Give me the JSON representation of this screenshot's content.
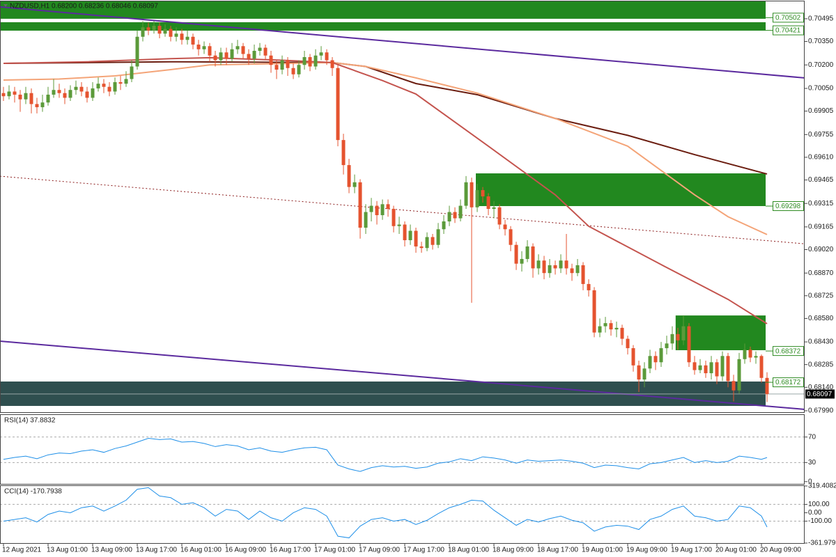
{
  "chart_data": [
    {
      "type": "candlestick",
      "title": "NZDUSD,H1  0.68200 0.68236 0.68046 0.68097",
      "categories": [
        "12 Aug 2021",
        null,
        null,
        null,
        null,
        null,
        null,
        null,
        "13 Aug 01:00",
        null,
        null,
        null,
        null,
        null,
        null,
        null,
        "13 Aug 09:00",
        null,
        null,
        null,
        null,
        null,
        null,
        null,
        "13 Aug 17:00",
        null,
        null,
        null,
        null,
        null,
        null,
        null,
        "16 Aug 01:00",
        null,
        null,
        null,
        null,
        null,
        null,
        null,
        "16 Aug 09:00",
        null,
        null,
        null,
        null,
        null,
        null,
        null,
        "16 Aug 17:00",
        null,
        null,
        null,
        null,
        null,
        null,
        null,
        "17 Aug 01:00",
        null,
        null,
        null,
        null,
        null,
        null,
        null,
        "17 Aug 09:00",
        null,
        null,
        null,
        null,
        null,
        null,
        null,
        "17 Aug 17:00",
        null,
        null,
        null,
        null,
        null,
        null,
        null,
        "18 Aug 01:00",
        null,
        null,
        null,
        null,
        null,
        null,
        null,
        "18 Aug 09:00",
        null,
        null,
        null,
        null,
        null,
        null,
        null,
        "18 Aug 17:00",
        null,
        null,
        null,
        null,
        null,
        null,
        null,
        "19 Aug 01:00",
        null,
        null,
        null,
        null,
        null,
        null,
        null,
        "19 Aug 09:00",
        null,
        null,
        null,
        null,
        null,
        null,
        null,
        "19 Aug 17:00",
        null,
        null,
        null,
        null,
        null,
        null,
        null,
        "20 Aug 01:00",
        null,
        null,
        null,
        null,
        null,
        null,
        null,
        "20 Aug 09:00",
        null
      ],
      "open": [
        0.7002,
        0.7,
        0.7003,
        0.7001,
        0.6998,
        0.7002,
        0.6995,
        0.6993,
        0.6996,
        0.7001,
        0.7004,
        0.7002,
        0.6999,
        0.7004,
        0.7006,
        0.7003,
        0.6999,
        0.7005,
        0.7008,
        0.7006,
        0.7003,
        0.7009,
        0.7008,
        0.7011,
        0.7019,
        0.7038,
        0.7044,
        0.7042,
        0.7045,
        0.704,
        0.7043,
        0.7038,
        0.704,
        0.7036,
        0.7038,
        0.7033,
        0.703,
        0.7032,
        0.7026,
        0.7023,
        0.7028,
        0.7024,
        0.703,
        0.7032,
        0.7027,
        0.7024,
        0.7029,
        0.7031,
        0.7026,
        0.702,
        0.7017,
        0.7023,
        0.7018,
        0.7014,
        0.702,
        0.7025,
        0.7019,
        0.7026,
        0.7028,
        0.7023,
        0.7018,
        0.6972,
        0.6956,
        0.6942,
        0.6945,
        0.6916,
        0.6926,
        0.693,
        0.6924,
        0.6931,
        0.6928,
        0.6917,
        0.6918,
        0.6908,
        0.6914,
        0.6904,
        0.6903,
        0.691,
        0.6905,
        0.6915,
        0.692,
        0.6926,
        0.6922,
        0.693,
        0.6945,
        0.6929,
        0.694,
        0.6936,
        0.6928,
        0.6929,
        0.6918,
        0.6915,
        0.6905,
        0.6893,
        0.6896,
        0.6904,
        0.689,
        0.6895,
        0.6887,
        0.6892,
        0.689,
        0.6895,
        0.689,
        0.6887,
        0.6892,
        0.688,
        0.6876,
        0.6849,
        0.6853,
        0.6855,
        0.6851,
        0.6852,
        0.6845,
        0.6839,
        0.6828,
        0.6819,
        0.6826,
        0.6834,
        0.683,
        0.6839,
        0.6842,
        0.6848,
        0.6844,
        0.6853,
        0.683,
        0.6825,
        0.6828,
        0.6823,
        0.683,
        0.6821,
        0.6834,
        0.6818,
        0.6812,
        0.6832,
        0.6838,
        0.6833,
        0.6834,
        0.682
      ],
      "high": [
        0.7006,
        0.7007,
        0.7006,
        0.7004,
        0.7006,
        0.7005,
        0.6999,
        0.7001,
        0.7006,
        0.7011,
        0.7008,
        0.7005,
        0.7007,
        0.701,
        0.7009,
        0.7006,
        0.7009,
        0.7012,
        0.7011,
        0.7009,
        0.7012,
        0.7013,
        0.7016,
        0.7023,
        0.7042,
        0.7048,
        0.7047,
        0.7048,
        0.7047,
        0.7046,
        0.7045,
        0.7044,
        0.7043,
        0.7042,
        0.704,
        0.7036,
        0.7035,
        0.7034,
        0.7029,
        0.7031,
        0.7031,
        0.7034,
        0.7036,
        0.7034,
        0.703,
        0.7033,
        0.7034,
        0.7033,
        0.7029,
        0.7023,
        0.7026,
        0.7025,
        0.7021,
        0.7023,
        0.7029,
        0.7027,
        0.703,
        0.7032,
        0.703,
        0.7025,
        0.702,
        0.6976,
        0.696,
        0.695,
        0.6947,
        0.6931,
        0.6935,
        0.6933,
        0.6934,
        0.6934,
        0.693,
        0.6923,
        0.692,
        0.6918,
        0.6916,
        0.6907,
        0.6913,
        0.6912,
        0.6919,
        0.6924,
        0.693,
        0.6929,
        0.6934,
        0.6949,
        0.6948,
        0.6944,
        0.6942,
        0.6938,
        0.6933,
        0.6931,
        0.6921,
        0.6917,
        0.6907,
        0.6901,
        0.6908,
        0.6906,
        0.6899,
        0.6898,
        0.6896,
        0.6895,
        0.6899,
        0.6912,
        0.6893,
        0.6896,
        0.6894,
        0.6883,
        0.6878,
        0.6858,
        0.6859,
        0.6857,
        0.6856,
        0.6854,
        0.6847,
        0.6841,
        0.6831,
        0.683,
        0.6838,
        0.6837,
        0.6843,
        0.6847,
        0.6853,
        0.6852,
        0.686,
        0.6855,
        0.6834,
        0.6832,
        0.6831,
        0.6834,
        0.6832,
        0.6837,
        0.6836,
        0.6822,
        0.6836,
        0.6842,
        0.684,
        0.6837,
        0.6835,
        0.68236
      ],
      "low": [
        0.6997,
        0.6998,
        0.6996,
        0.699,
        0.6995,
        0.6989,
        0.6989,
        0.699,
        0.6994,
        0.6999,
        0.6999,
        0.6995,
        0.6997,
        0.7001,
        0.7,
        0.6996,
        0.6997,
        0.7003,
        0.7002,
        0.7,
        0.7001,
        0.7004,
        0.7006,
        0.7009,
        0.7017,
        0.7035,
        0.7039,
        0.704,
        0.7037,
        0.7038,
        0.7035,
        0.7035,
        0.7033,
        0.7033,
        0.703,
        0.7026,
        0.7027,
        0.7022,
        0.7019,
        0.702,
        0.702,
        0.7022,
        0.7027,
        0.7024,
        0.702,
        0.7021,
        0.7026,
        0.7023,
        0.7015,
        0.7011,
        0.7014,
        0.7013,
        0.7011,
        0.7012,
        0.7017,
        0.7016,
        0.7017,
        0.7023,
        0.702,
        0.7013,
        0.6968,
        0.695,
        0.6938,
        0.6938,
        0.6909,
        0.6912,
        0.692,
        0.6918,
        0.6921,
        0.6923,
        0.6913,
        0.6912,
        0.6904,
        0.6905,
        0.69,
        0.69,
        0.6901,
        0.6902,
        0.6903,
        0.6912,
        0.6917,
        0.6919,
        0.692,
        0.6928,
        0.6868,
        0.6926,
        0.6932,
        0.6924,
        0.6922,
        0.6915,
        0.6911,
        0.6901,
        0.6889,
        0.6888,
        0.6894,
        0.6884,
        0.6886,
        0.6883,
        0.6884,
        0.6886,
        0.6887,
        0.6886,
        0.6882,
        0.6885,
        0.6876,
        0.6872,
        0.6846,
        0.6846,
        0.6849,
        0.6847,
        0.6846,
        0.6841,
        0.6835,
        0.6824,
        0.6811,
        0.6814,
        0.6823,
        0.6825,
        0.6827,
        0.6835,
        0.6838,
        0.6838,
        0.6841,
        0.6827,
        0.6822,
        0.6823,
        0.682,
        0.6819,
        0.6816,
        0.6818,
        0.6814,
        0.6805,
        0.681,
        0.6829,
        0.683,
        0.6829,
        0.6817,
        0.68046
      ],
      "close": [
        0.7,
        0.7003,
        0.7001,
        0.6998,
        0.7002,
        0.6995,
        0.6993,
        0.6996,
        0.7001,
        0.7004,
        0.7002,
        0.6999,
        0.7004,
        0.7006,
        0.7003,
        0.6999,
        0.7005,
        0.7008,
        0.7006,
        0.7003,
        0.7009,
        0.7008,
        0.7011,
        0.7019,
        0.7038,
        0.7044,
        0.7042,
        0.7045,
        0.704,
        0.7043,
        0.7038,
        0.704,
        0.7036,
        0.7038,
        0.7033,
        0.703,
        0.7032,
        0.7026,
        0.7023,
        0.7028,
        0.7024,
        0.703,
        0.7032,
        0.7027,
        0.7024,
        0.7029,
        0.7031,
        0.7026,
        0.702,
        0.7017,
        0.7023,
        0.7018,
        0.7014,
        0.702,
        0.7025,
        0.7019,
        0.7026,
        0.7028,
        0.7023,
        0.7018,
        0.6972,
        0.6956,
        0.6942,
        0.6945,
        0.6916,
        0.6926,
        0.693,
        0.6924,
        0.6931,
        0.6928,
        0.6917,
        0.6918,
        0.6908,
        0.6914,
        0.6904,
        0.6903,
        0.691,
        0.6905,
        0.6915,
        0.692,
        0.6926,
        0.6922,
        0.693,
        0.6945,
        0.6929,
        0.694,
        0.6936,
        0.6928,
        0.6929,
        0.6918,
        0.6915,
        0.6905,
        0.6893,
        0.6896,
        0.6904,
        0.689,
        0.6895,
        0.6887,
        0.6892,
        0.689,
        0.6895,
        0.689,
        0.6887,
        0.6892,
        0.688,
        0.6876,
        0.6849,
        0.6853,
        0.6855,
        0.6851,
        0.6852,
        0.6845,
        0.6839,
        0.6828,
        0.6819,
        0.6826,
        0.6834,
        0.683,
        0.6839,
        0.6842,
        0.6848,
        0.6844,
        0.6853,
        0.683,
        0.6825,
        0.6828,
        0.6823,
        0.683,
        0.6821,
        0.6834,
        0.6818,
        0.6812,
        0.6832,
        0.6838,
        0.6833,
        0.6834,
        0.682,
        0.68097
      ],
      "up_color": "#5b9a3a",
      "down_color": "#e5532f",
      "xlim": [
        -0.625,
        143.75
      ],
      "ylim": [
        0.67981,
        0.70606
      ],
      "yticks": [
        0.70495,
        {
          "value": 0.7035,
          "label": "0.70350"
        },
        {
          "value": 0.702,
          "label": "0.70200"
        },
        {
          "value": 0.7005,
          "label": "0.70050"
        },
        0.69905,
        0.69755,
        {
          "value": 0.6961,
          "label": "0.69610"
        },
        0.69465,
        0.69315,
        0.69165,
        {
          "value": 0.6902,
          "label": "0.69020"
        },
        {
          "value": 0.6887,
          "label": "0.68870"
        },
        0.68725,
        {
          "value": 0.6858,
          "label": "0.68580"
        },
        {
          "value": 0.6843,
          "label": "0.68430"
        },
        0.68285,
        {
          "value": 0.6814,
          "label": "0.68140"
        },
        {
          "value": 0.6799,
          "label": "0.67990"
        }
      ],
      "series": [
        {
          "color": "#6b1d10",
          "x": [
            0,
            30,
            59,
            65,
            74,
            85,
            99,
            112,
            124,
            137
          ],
          "values": [
            0.7021,
            0.7022,
            0.70215,
            0.7019,
            0.70081,
            0.7001,
            0.69858,
            0.6975,
            0.69627,
            0.69503
          ]
        },
        {
          "color": "#f4a478",
          "x": [
            0,
            10,
            20,
            30,
            37,
            59,
            65,
            74,
            85,
            99,
            112,
            124,
            130,
            137
          ],
          "values": [
            0.70103,
            0.7011,
            0.7013,
            0.7017,
            0.702,
            0.70215,
            0.7019,
            0.70117,
            0.7002,
            0.69858,
            0.69681,
            0.6937,
            0.6923,
            0.69116
          ]
        },
        {
          "color": "#c4544e",
          "x": [
            0,
            15,
            30,
            37,
            50,
            59,
            68,
            74,
            87,
            99,
            105,
            118,
            130,
            137
          ],
          "values": [
            0.7021,
            0.7022,
            0.7024,
            0.70246,
            0.7023,
            0.70215,
            0.701,
            0.70014,
            0.69681,
            0.6937,
            0.69169,
            0.68924,
            0.68702,
            0.68546
          ]
        }
      ],
      "trendlines": [
        {
          "color": "#5b2a9e",
          "dashed": false,
          "x": [
            -0.625,
            143.75
          ],
          "values": [
            0.70571,
            0.70117
          ]
        },
        {
          "color": "#5b2a9e",
          "dashed": false,
          "x": [
            -0.625,
            143.75
          ],
          "values": [
            0.68435,
            0.67999
          ]
        },
        {
          "color": "#8b1a1a",
          "dashed": true,
          "x": [
            -0.625,
            143.75
          ],
          "values": [
            0.69489,
            0.69057
          ]
        }
      ],
      "zones": [
        {
          "color": "#22881f",
          "start": -0.625,
          "end": 136.75,
          "top": 0.70606,
          "bottom": 0.70495
        },
        {
          "color": "#22881f",
          "start": -0.625,
          "end": 136.75,
          "top": 0.70473,
          "bottom": 0.70419
        },
        {
          "color": "#22881f",
          "start": 84.75,
          "end": 136.75,
          "top": 0.69507,
          "bottom": 0.69298
        },
        {
          "color": "#22881f",
          "start": 120.6,
          "end": 136.75,
          "top": 0.68599,
          "bottom": 0.68377
        },
        {
          "color": "#2f4f4f",
          "start": -0.625,
          "end": 136.75,
          "top": 0.68177,
          "bottom": 0.68021
        }
      ],
      "levels": [
        0.70502,
        0.70421,
        0.69298,
        0.68372,
        0.68172
      ],
      "level_color": "#2e8b22"
    },
    {
      "type": "line",
      "title": "RSI(14) 37.8832",
      "color": "#1e8fe8",
      "x": [
        0,
        2,
        4,
        6,
        8,
        10,
        12,
        14,
        16,
        18,
        20,
        22,
        24,
        26,
        28,
        30,
        32,
        34,
        36,
        38,
        40,
        42,
        44,
        46,
        48,
        50,
        52,
        54,
        56,
        58,
        60,
        62,
        64,
        66,
        68,
        70,
        72,
        74,
        76,
        78,
        80,
        82,
        84,
        86,
        88,
        90,
        92,
        94,
        96,
        98,
        100,
        102,
        104,
        106,
        108,
        110,
        112,
        114,
        116,
        118,
        120,
        122,
        124,
        126,
        128,
        130,
        132,
        134,
        136,
        137
      ],
      "values": [
        35,
        38,
        40,
        36,
        42,
        45,
        44,
        48,
        50,
        46,
        52,
        56,
        62,
        68,
        66,
        67,
        62,
        63,
        60,
        55,
        58,
        56,
        50,
        53,
        48,
        46,
        50,
        53,
        54,
        50,
        26,
        20,
        16,
        22,
        25,
        23,
        24,
        21,
        23,
        29,
        31,
        36,
        33,
        39,
        37,
        34,
        29,
        34,
        32,
        33,
        34,
        32,
        29,
        22,
        26,
        25,
        22,
        20,
        28,
        30,
        34,
        38,
        30,
        33,
        30,
        32,
        40,
        38,
        35,
        37.8832
      ],
      "ylim": [
        -3.5,
        104.6
      ],
      "yticks": [
        70,
        30,
        0
      ],
      "level_lines": [
        70,
        30
      ]
    },
    {
      "type": "line",
      "title": "CCI(14) -170.7938",
      "color": "#1e8fe8",
      "x": [
        0,
        2,
        4,
        6,
        8,
        10,
        12,
        14,
        16,
        18,
        20,
        22,
        24,
        26,
        28,
        30,
        32,
        34,
        36,
        38,
        40,
        42,
        44,
        46,
        48,
        50,
        52,
        54,
        56,
        58,
        60,
        62,
        64,
        66,
        68,
        70,
        72,
        74,
        76,
        78,
        80,
        82,
        84,
        86,
        88,
        90,
        92,
        94,
        96,
        98,
        100,
        102,
        104,
        106,
        108,
        110,
        112,
        114,
        116,
        118,
        120,
        122,
        124,
        126,
        128,
        130,
        132,
        134,
        136,
        137
      ],
      "values": [
        -100,
        -80,
        -60,
        -110,
        -20,
        20,
        0,
        60,
        80,
        20,
        80,
        150,
        280,
        300,
        200,
        180,
        100,
        120,
        60,
        -40,
        40,
        20,
        -80,
        20,
        -60,
        -100,
        0,
        60,
        40,
        -40,
        -280,
        -300,
        -160,
        -80,
        -60,
        -100,
        -80,
        -140,
        -90,
        -10,
        60,
        100,
        150,
        140,
        30,
        -60,
        -150,
        -80,
        -110,
        -70,
        -40,
        -90,
        -120,
        -220,
        -170,
        -150,
        -160,
        -200,
        -80,
        -40,
        40,
        80,
        -40,
        -60,
        -100,
        -80,
        80,
        60,
        -40,
        -170.7938
      ],
      "ylim": [
        -361.9799,
        319.4082
      ],
      "yticks": [
        319.4082,
        {
          "value": 100,
          "label": "100.00"
        },
        {
          "value": 0,
          "label": "0.00"
        },
        {
          "value": -100,
          "label": "-100.00"
        },
        -361.9799
      ],
      "level_lines": [
        100,
        -100
      ]
    }
  ]
}
